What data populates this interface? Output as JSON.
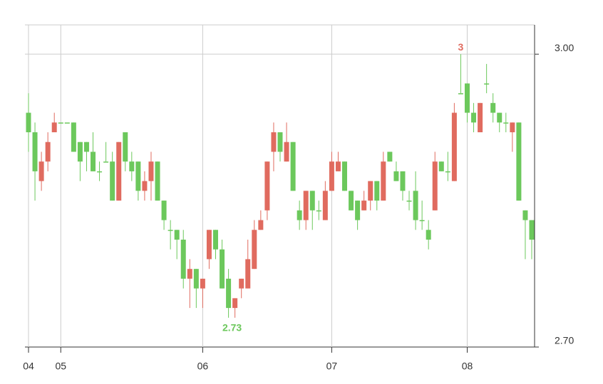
{
  "chart_data": {
    "type": "candlestick",
    "categories": [
      "04",
      null,
      null,
      null,
      null,
      "05",
      null,
      null,
      null,
      null,
      null,
      null,
      null,
      null,
      null,
      null,
      null,
      null,
      null,
      null,
      null,
      null,
      null,
      null,
      null,
      null,
      null,
      "06",
      null,
      null,
      null,
      null,
      null,
      null,
      null,
      null,
      null,
      null,
      null,
      null,
      null,
      null,
      null,
      null,
      null,
      null,
      null,
      "07",
      null,
      null,
      null,
      null,
      null,
      null,
      null,
      null,
      null,
      null,
      null,
      null,
      null,
      null,
      null,
      null,
      null,
      null,
      null,
      null,
      "08",
      null,
      null,
      null,
      null,
      null,
      null,
      null,
      null,
      null,
      null
    ],
    "open": [
      2.94,
      2.92,
      2.87,
      2.89,
      2.92,
      2.93,
      2.93,
      2.93,
      2.91,
      2.91,
      2.9,
      2.88,
      2.89,
      2.89,
      2.85,
      2.92,
      2.89,
      2.89,
      2.86,
      2.87,
      2.89,
      2.85,
      2.82,
      2.82,
      2.81,
      2.77,
      2.78,
      2.76,
      2.79,
      2.82,
      2.8,
      2.77,
      2.74,
      2.76,
      2.76,
      2.78,
      2.82,
      2.84,
      2.9,
      2.92,
      2.89,
      2.91,
      2.84,
      2.83,
      2.86,
      2.84,
      2.83,
      2.86,
      2.88,
      2.89,
      2.86,
      2.85,
      2.84,
      2.85,
      2.87,
      2.85,
      2.9,
      2.88,
      2.88,
      2.85,
      2.86,
      2.83,
      2.82,
      2.84,
      2.89,
      2.88,
      2.87,
      2.96,
      2.97,
      2.94,
      2.92,
      2.97,
      2.95,
      2.94,
      2.93,
      2.92,
      2.93,
      2.84,
      2.83
    ],
    "high": [
      2.96,
      2.93,
      2.9,
      2.92,
      2.94,
      2.93,
      2.93,
      2.93,
      2.91,
      2.91,
      2.92,
      2.89,
      2.91,
      2.9,
      2.91,
      2.92,
      2.9,
      2.89,
      2.88,
      2.9,
      2.89,
      2.85,
      2.83,
      2.82,
      2.82,
      2.79,
      2.78,
      2.77,
      2.82,
      2.82,
      2.81,
      2.78,
      2.75,
      2.77,
      2.81,
      2.83,
      2.84,
      2.89,
      2.93,
      2.92,
      2.93,
      2.91,
      2.85,
      2.86,
      2.86,
      2.85,
      2.87,
      2.9,
      2.9,
      2.89,
      2.86,
      2.85,
      2.86,
      2.87,
      2.87,
      2.9,
      2.9,
      2.89,
      2.88,
      2.86,
      2.88,
      2.85,
      2.83,
      2.9,
      2.89,
      2.9,
      2.95,
      3.0,
      2.97,
      2.95,
      2.95,
      2.99,
      2.96,
      2.94,
      2.94,
      2.93,
      2.93,
      2.84,
      2.83
    ],
    "low": [
      2.9,
      2.85,
      2.86,
      2.88,
      2.92,
      2.93,
      2.93,
      2.9,
      2.87,
      2.88,
      2.88,
      2.87,
      2.89,
      2.85,
      2.85,
      2.88,
      2.87,
      2.85,
      2.85,
      2.85,
      2.85,
      2.82,
      2.8,
      2.79,
      2.76,
      2.74,
      2.74,
      2.74,
      2.78,
      2.79,
      2.76,
      2.73,
      2.73,
      2.75,
      2.76,
      2.78,
      2.82,
      2.83,
      2.88,
      2.89,
      2.89,
      2.86,
      2.82,
      2.82,
      2.82,
      2.83,
      2.83,
      2.86,
      2.88,
      2.86,
      2.84,
      2.82,
      2.84,
      2.84,
      2.84,
      2.85,
      2.89,
      2.87,
      2.85,
      2.84,
      2.82,
      2.82,
      2.8,
      2.84,
      2.88,
      2.87,
      2.87,
      2.96,
      2.93,
      2.92,
      2.92,
      2.96,
      2.93,
      2.92,
      2.92,
      2.9,
      2.85,
      2.79,
      2.79
    ],
    "close": [
      2.92,
      2.88,
      2.89,
      2.91,
      2.93,
      2.93,
      2.93,
      2.9,
      2.89,
      2.9,
      2.88,
      2.88,
      2.89,
      2.85,
      2.91,
      2.89,
      2.88,
      2.86,
      2.87,
      2.89,
      2.85,
      2.83,
      2.82,
      2.81,
      2.77,
      2.78,
      2.76,
      2.77,
      2.82,
      2.8,
      2.76,
      2.74,
      2.75,
      2.77,
      2.79,
      2.82,
      2.83,
      2.89,
      2.92,
      2.9,
      2.91,
      2.86,
      2.83,
      2.86,
      2.84,
      2.84,
      2.86,
      2.89,
      2.89,
      2.86,
      2.84,
      2.83,
      2.85,
      2.87,
      2.85,
      2.89,
      2.89,
      2.87,
      2.86,
      2.85,
      2.83,
      2.83,
      2.81,
      2.89,
      2.88,
      2.88,
      2.94,
      2.96,
      2.94,
      2.93,
      2.95,
      2.97,
      2.94,
      2.93,
      2.93,
      2.93,
      2.85,
      2.83,
      2.81
    ],
    "up_color": "#e06b5f",
    "down_color": "#6cc85c",
    "ylim": [
      2.7,
      3.03
    ],
    "yticks": [
      {
        "value": 3,
        "label": "3.00"
      },
      {
        "value": 2.7,
        "label": "2.70"
      }
    ],
    "grid": true,
    "max_label": {
      "text": "3",
      "color": "#e06b5f"
    },
    "min_label": {
      "text": "2.73",
      "color": "#6cc85c"
    }
  }
}
